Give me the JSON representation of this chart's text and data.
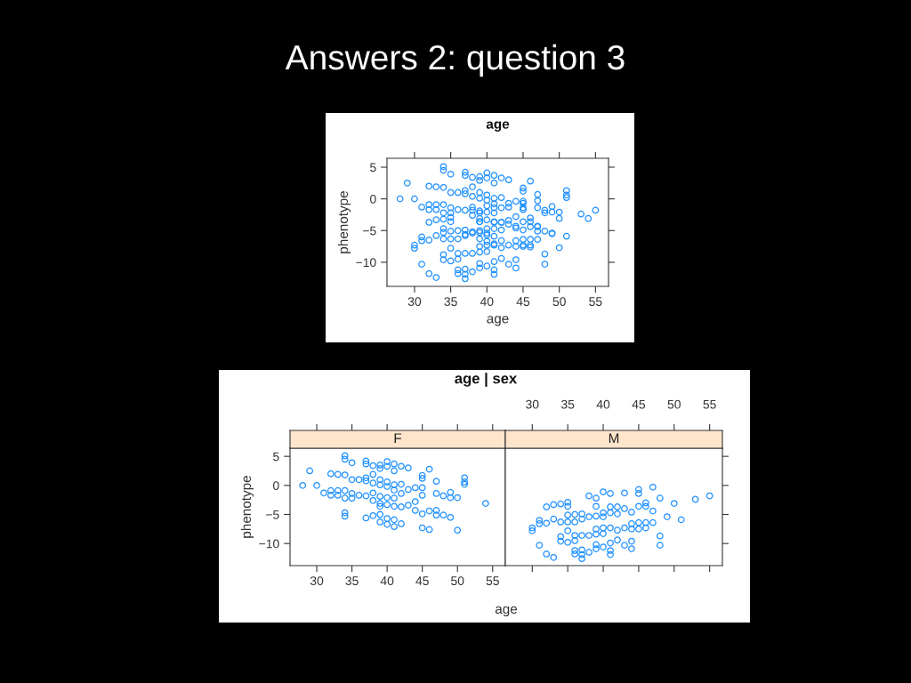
{
  "chart_data": [
    {
      "type": "scatter",
      "title": "age",
      "xlabel": "age",
      "ylabel": "phenotype",
      "annotations": [
        "Answers 2: question 3"
      ],
      "marker": "circle",
      "xlim": [
        26.2,
        56.8
      ],
      "ylim": [
        -13.8,
        6.4
      ],
      "xticks": [
        30,
        35,
        40,
        45,
        50,
        55
      ],
      "yticks": [
        {
          "value": 5,
          "label": "5"
        },
        {
          "value": 0,
          "label": "0"
        },
        {
          "value": -5,
          "label": "−5"
        },
        {
          "value": -10,
          "label": "−10"
        }
      ],
      "series": [
        {
          "color": "#1e90ff",
          "x": [
            28,
            29,
            30,
            31,
            32,
            32,
            32,
            33,
            33,
            33,
            34,
            34,
            34,
            34,
            34,
            34,
            34,
            35,
            35,
            35,
            35,
            36,
            36,
            37,
            37,
            37,
            37,
            37,
            37,
            38,
            38,
            38,
            38,
            38,
            38,
            39,
            39,
            39,
            39,
            39,
            39,
            39,
            39,
            39,
            40,
            40,
            40,
            40,
            40,
            40,
            40,
            40,
            41,
            41,
            41,
            41,
            41,
            41,
            41,
            41,
            42,
            42,
            42,
            42,
            42,
            43,
            43,
            43,
            44,
            44,
            44,
            45,
            45,
            45,
            45,
            45,
            45,
            46,
            46,
            46,
            47,
            47,
            47,
            47,
            48,
            48,
            49,
            49,
            49,
            50,
            50,
            51,
            51,
            51,
            54,
            30,
            30,
            31,
            31,
            31,
            32,
            32,
            32,
            33,
            33,
            33,
            34,
            34,
            34,
            34,
            35,
            35,
            35,
            35,
            35,
            35,
            36,
            36,
            36,
            36,
            36,
            36,
            37,
            37,
            37,
            37,
            37,
            37,
            38,
            38,
            38,
            38,
            39,
            39,
            39,
            39,
            39,
            39,
            39,
            40,
            40,
            40,
            40,
            40,
            40,
            41,
            41,
            41,
            41,
            41,
            41,
            41,
            42,
            42,
            42,
            42,
            43,
            43,
            43,
            43,
            44,
            44,
            44,
            44,
            44,
            45,
            45,
            45,
            45,
            45,
            46,
            46,
            46,
            46,
            47,
            47,
            47,
            48,
            48,
            48,
            49,
            50,
            51,
            53,
            55
          ],
          "values": [
            0,
            2.5,
            0,
            -1.3,
            2.0,
            -0.9,
            -1.7,
            1.9,
            -0.9,
            -1.7,
            5.1,
            4.5,
            1.8,
            -0.9,
            -2.2,
            -4.7,
            -5.3,
            3.9,
            1.0,
            -1.4,
            -2.2,
            1.0,
            -1.7,
            4.2,
            3.7,
            1.3,
            0.8,
            -1.8,
            -5.6,
            3.4,
            1.9,
            0.4,
            -1.3,
            -2.6,
            -5.2,
            3.5,
            2.9,
            1.0,
            0.1,
            -1.9,
            -3.1,
            -3.6,
            -5.0,
            -6.3,
            4.1,
            3.3,
            0.6,
            -0.2,
            -2.1,
            -3.3,
            -5.7,
            -6.7,
            3.7,
            2.5,
            0.1,
            -0.8,
            -2.2,
            -3.6,
            -5.9,
            -7.1,
            3.3,
            0.2,
            -1.4,
            -3.7,
            -6.6,
            3.0,
            -0.7,
            -3.4,
            -0.4,
            -2.8,
            -4.3,
            1.7,
            1.2,
            -0.4,
            -1.7,
            -4.9,
            -7.3,
            2.8,
            -4.4,
            -7.6,
            0.7,
            -1.4,
            -4.3,
            -5.1,
            -1.8,
            -5.1,
            -1.2,
            -2.1,
            -5.5,
            -2.1,
            -7.7,
            1.3,
            0.6,
            0.2,
            -3.1,
            -7.3,
            -7.8,
            -6.0,
            -6.6,
            -10.3,
            -6.5,
            -3.7,
            -11.8,
            -12.4,
            -3.3,
            -5.8,
            -3.2,
            -6.3,
            -8.8,
            -9.6,
            -2.9,
            -3.6,
            -5.1,
            -6.3,
            -7.8,
            -9.8,
            -5.0,
            -6.3,
            -8.6,
            -9.5,
            -11.2,
            -11.8,
            -4.9,
            -5.8,
            -8.6,
            -11.1,
            -11.9,
            -12.6,
            -1.8,
            -5.4,
            -8.6,
            -11.5,
            -2.2,
            -3.6,
            -5.3,
            -7.5,
            -8.4,
            -10.2,
            -10.9,
            -1.1,
            -4.7,
            -5.4,
            -7.3,
            -8.3,
            -10.6,
            -1.4,
            -3.7,
            -4.7,
            -7.3,
            -9.9,
            -11.2,
            -11.9,
            -3.7,
            -4.9,
            -7.7,
            -9.4,
            -1.3,
            -4.0,
            -7.3,
            -10.3,
            -4.6,
            -6.6,
            -7.5,
            -9.6,
            -10.9,
            -0.7,
            -1.4,
            -3.6,
            -6.4,
            -7.5,
            -3.0,
            -3.6,
            -6.4,
            -7.3,
            -0.3,
            -4.4,
            -6.4,
            -2.2,
            -8.7,
            -10.3,
            -5.4,
            -3.1,
            -5.9,
            -2.4,
            -1.8
          ]
        }
      ]
    },
    {
      "type": "scatter",
      "title": "F",
      "subtitle": "age | sex",
      "xlabel": "age",
      "ylabel": "phenotype",
      "marker": "circle",
      "xlim": [
        26.2,
        56.8
      ],
      "ylim": [
        -13.8,
        6.4
      ],
      "xticks": [
        30,
        35,
        40,
        45,
        50,
        55
      ],
      "yticks": [
        {
          "value": 5,
          "label": "5"
        },
        {
          "value": 0,
          "label": "0"
        },
        {
          "value": -5,
          "label": "−5"
        },
        {
          "value": -10,
          "label": "−10"
        }
      ],
      "series": [
        {
          "color": "#1e90ff",
          "x": [
            28,
            29,
            30,
            31,
            32,
            32,
            32,
            33,
            33,
            33,
            34,
            34,
            34,
            34,
            34,
            34,
            34,
            35,
            35,
            35,
            35,
            36,
            36,
            37,
            37,
            37,
            37,
            37,
            37,
            38,
            38,
            38,
            38,
            38,
            38,
            39,
            39,
            39,
            39,
            39,
            39,
            39,
            39,
            39,
            40,
            40,
            40,
            40,
            40,
            40,
            40,
            40,
            41,
            41,
            41,
            41,
            41,
            41,
            41,
            41,
            42,
            42,
            42,
            42,
            42,
            43,
            43,
            43,
            44,
            44,
            44,
            45,
            45,
            45,
            45,
            45,
            45,
            46,
            46,
            46,
            47,
            47,
            47,
            47,
            48,
            48,
            49,
            49,
            49,
            50,
            50,
            51,
            51,
            51,
            54
          ],
          "values": [
            0,
            2.5,
            0,
            -1.3,
            2.0,
            -0.9,
            -1.7,
            1.9,
            -0.9,
            -1.7,
            5.1,
            4.5,
            1.8,
            -0.9,
            -2.2,
            -4.7,
            -5.3,
            3.9,
            1.0,
            -1.4,
            -2.2,
            1.0,
            -1.7,
            4.2,
            3.7,
            1.3,
            0.8,
            -1.8,
            -5.6,
            3.4,
            1.9,
            0.4,
            -1.3,
            -2.6,
            -5.2,
            3.5,
            2.9,
            1.0,
            0.1,
            -1.9,
            -3.1,
            -3.6,
            -5.0,
            -6.3,
            4.1,
            3.3,
            0.6,
            -0.2,
            -2.1,
            -3.3,
            -5.7,
            -6.7,
            3.7,
            2.5,
            0.1,
            -0.8,
            -2.2,
            -3.6,
            -5.9,
            -7.1,
            3.3,
            0.2,
            -1.4,
            -3.7,
            -6.6,
            3.0,
            -0.7,
            -3.4,
            -0.4,
            -2.8,
            -4.3,
            1.7,
            1.2,
            -0.4,
            -1.7,
            -4.9,
            -7.3,
            2.8,
            -4.4,
            -7.6,
            0.7,
            -1.4,
            -4.3,
            -5.1,
            -1.8,
            -5.1,
            -1.2,
            -2.1,
            -5.5,
            -2.1,
            -7.7,
            1.3,
            0.6,
            0.2,
            -3.1
          ]
        }
      ]
    },
    {
      "type": "scatter",
      "title": "M",
      "marker": "circle",
      "tick_labels": "x",
      "xlim": [
        26.2,
        56.8
      ],
      "ylim": [
        -13.8,
        6.4
      ],
      "xticks": [
        30,
        35,
        40,
        45,
        50,
        55
      ],
      "yticks": [
        {
          "value": 5,
          "label": null
        },
        {
          "value": 0,
          "label": null
        },
        {
          "value": -5,
          "label": null
        },
        {
          "value": -10,
          "label": null
        }
      ],
      "series": [
        {
          "color": "#1e90ff",
          "x": [
            30,
            30,
            31,
            31,
            31,
            32,
            32,
            32,
            33,
            33,
            33,
            34,
            34,
            34,
            34,
            35,
            35,
            35,
            35,
            35,
            35,
            36,
            36,
            36,
            36,
            36,
            36,
            37,
            37,
            37,
            37,
            37,
            37,
            38,
            38,
            38,
            38,
            39,
            39,
            39,
            39,
            39,
            39,
            39,
            40,
            40,
            40,
            40,
            40,
            40,
            41,
            41,
            41,
            41,
            41,
            41,
            41,
            42,
            42,
            42,
            42,
            43,
            43,
            43,
            43,
            44,
            44,
            44,
            44,
            44,
            45,
            45,
            45,
            45,
            45,
            46,
            46,
            46,
            46,
            47,
            47,
            47,
            48,
            48,
            48,
            49,
            50,
            51,
            53,
            55
          ],
          "values": [
            -7.3,
            -7.8,
            -6.0,
            -6.6,
            -10.3,
            -6.5,
            -3.7,
            -11.8,
            -12.4,
            -3.3,
            -5.8,
            -3.2,
            -6.3,
            -8.8,
            -9.6,
            -2.9,
            -3.6,
            -5.1,
            -6.3,
            -7.8,
            -9.8,
            -5.0,
            -6.3,
            -8.6,
            -9.5,
            -11.2,
            -11.8,
            -4.9,
            -5.8,
            -8.6,
            -11.1,
            -11.9,
            -12.6,
            -1.8,
            -5.4,
            -8.6,
            -11.5,
            -2.2,
            -3.6,
            -5.3,
            -7.5,
            -8.4,
            -10.2,
            -10.9,
            -1.1,
            -4.7,
            -5.4,
            -7.3,
            -8.3,
            -10.6,
            -1.4,
            -3.7,
            -4.7,
            -7.3,
            -9.9,
            -11.2,
            -11.9,
            -3.7,
            -4.9,
            -7.7,
            -9.4,
            -1.3,
            -4.0,
            -7.3,
            -10.3,
            -4.6,
            -6.6,
            -7.5,
            -9.6,
            -10.9,
            -0.7,
            -1.4,
            -3.6,
            -6.4,
            -7.5,
            -3.0,
            -3.6,
            -6.4,
            -7.3,
            -0.3,
            -4.4,
            -6.4,
            -2.2,
            -8.7,
            -10.3,
            -5.4,
            -3.1,
            -5.9,
            -2.4,
            -1.8
          ]
        }
      ]
    }
  ]
}
